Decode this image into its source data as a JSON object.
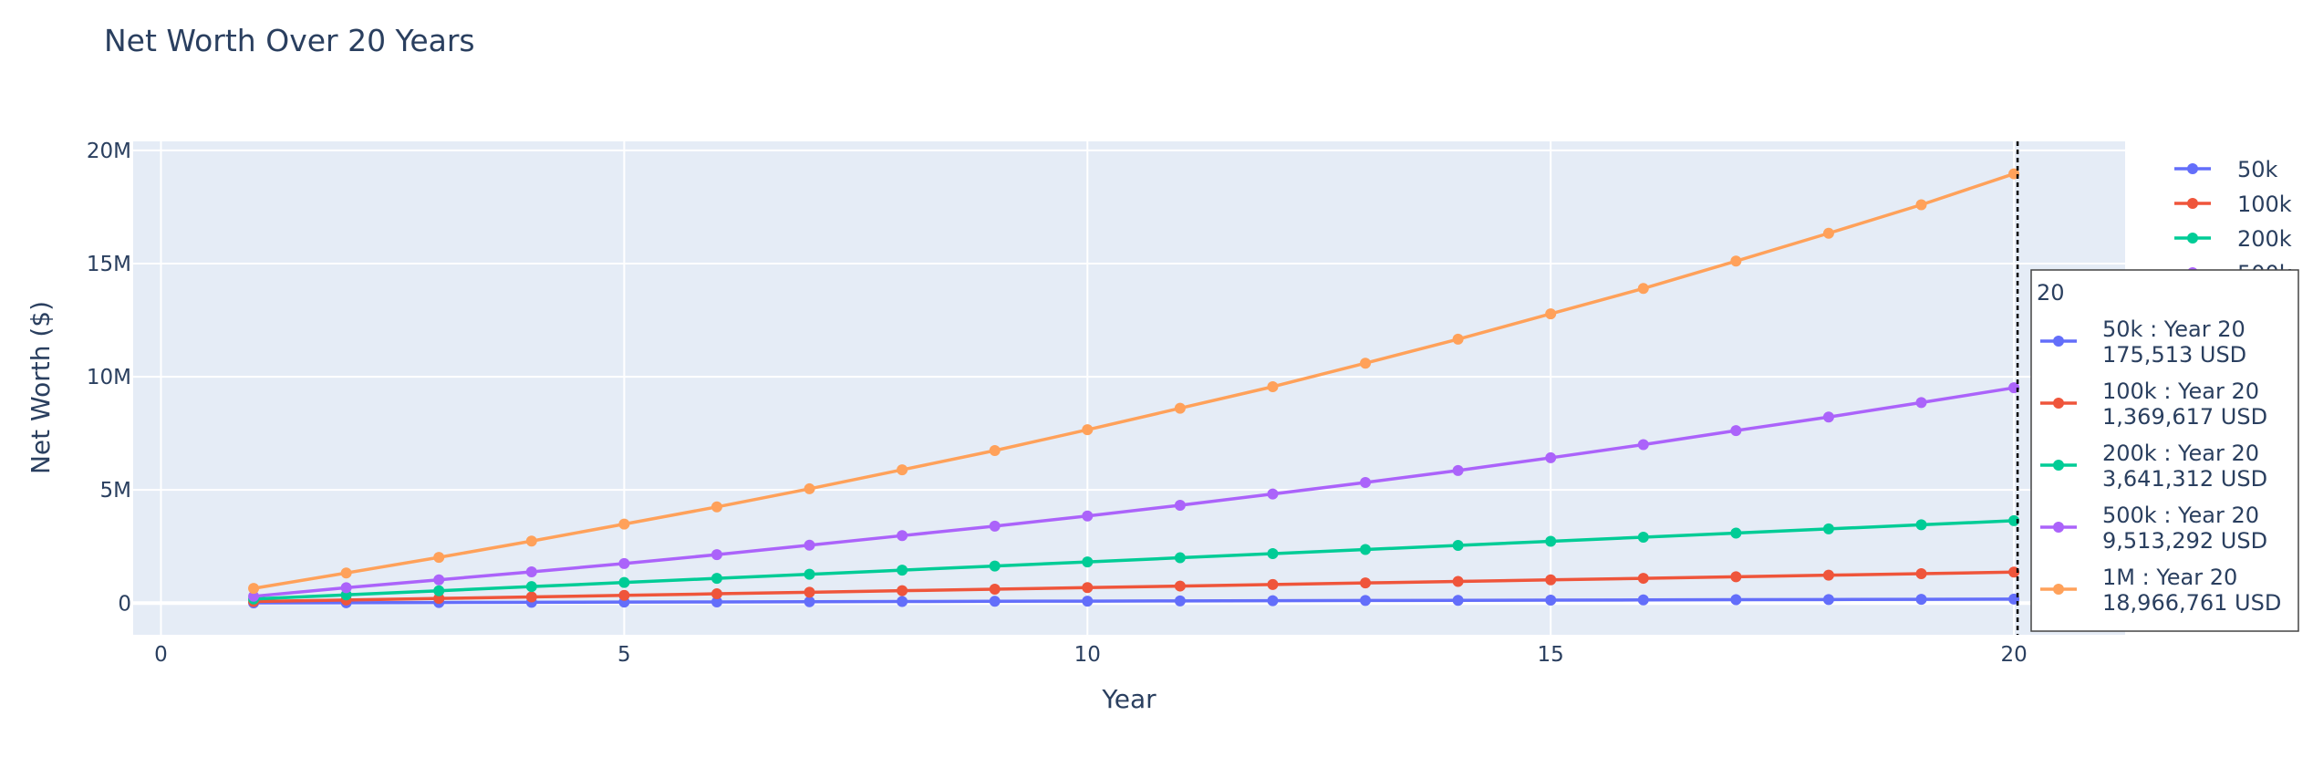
{
  "chart_data": {
    "type": "line",
    "title": "Net Worth Over 20 Years",
    "xlabel": "Year",
    "ylabel": "Net Worth ($)",
    "xlim": [
      -0.3,
      21.2
    ],
    "ylim": [
      -1400000,
      20400000
    ],
    "x_ticks": [
      0,
      5,
      10,
      15,
      20
    ],
    "x_tick_labels": [
      "0",
      "5",
      "10",
      "15",
      "20"
    ],
    "y_ticks": [
      0,
      5000000,
      10000000,
      15000000,
      20000000
    ],
    "y_tick_labels": [
      "0",
      "5M",
      "10M",
      "15M",
      "20M"
    ],
    "grid": true,
    "legend_position": "right",
    "x": [
      1,
      2,
      3,
      4,
      5,
      6,
      7,
      8,
      9,
      10,
      11,
      12,
      13,
      14,
      15,
      16,
      17,
      18,
      19,
      20
    ],
    "series": [
      {
        "name": "50k",
        "color": "#636efa",
        "values": [
          8776,
          17552,
          26327,
          35103,
          43878,
          52654,
          61430,
          70205,
          78981,
          87757,
          96532,
          105308,
          114083,
          122859,
          131635,
          140410,
          149186,
          157962,
          166737,
          175513
        ]
      },
      {
        "name": "100k",
        "color": "#EF553B",
        "values": [
          68481,
          136962,
          205443,
          273923,
          342404,
          410885,
          479366,
          547847,
          616328,
          684809,
          753289,
          821770,
          890251,
          958732,
          1027213,
          1095694,
          1164174,
          1232655,
          1301136,
          1369617
        ]
      },
      {
        "name": "200k",
        "color": "#00cc96",
        "values": [
          182066,
          364131,
          546197,
          728262,
          910328,
          1092394,
          1274459,
          1456525,
          1638590,
          1820656,
          2002722,
          2184787,
          2366853,
          2548918,
          2730984,
          2913050,
          3095115,
          3277181,
          3459246,
          3641312
        ]
      },
      {
        "name": "500k",
        "color": "#ab63fa",
        "values": [
          300000,
          680000,
          1030000,
          1380000,
          1750000,
          2140000,
          2560000,
          2980000,
          3400000,
          3850000,
          4320000,
          4820000,
          5330000,
          5860000,
          6420000,
          7000000,
          7620000,
          8220000,
          8860000,
          9513292
        ]
      },
      {
        "name": "1M",
        "color": "#FFA15A",
        "values": [
          650000,
          1330000,
          2020000,
          2740000,
          3490000,
          4250000,
          5050000,
          5890000,
          6740000,
          7660000,
          8610000,
          9560000,
          10600000,
          11660000,
          12780000,
          13900000,
          15110000,
          16340000,
          17600000,
          18966761
        ]
      }
    ],
    "hover": {
      "header": "20",
      "x_value": 20,
      "entries": [
        {
          "label": "50k : Year 20",
          "value": "175,513 USD",
          "color": "#636efa"
        },
        {
          "label": "100k : Year 20",
          "value": "1,369,617 USD",
          "color": "#EF553B"
        },
        {
          "label": "200k : Year 20",
          "value": "3,641,312 USD",
          "color": "#00cc96"
        },
        {
          "label": "500k : Year 20",
          "value": "9,513,292 USD",
          "color": "#ab63fa"
        },
        {
          "label": "1M : Year 20",
          "value": "18,966,761 USD",
          "color": "#FFA15A"
        }
      ]
    }
  }
}
